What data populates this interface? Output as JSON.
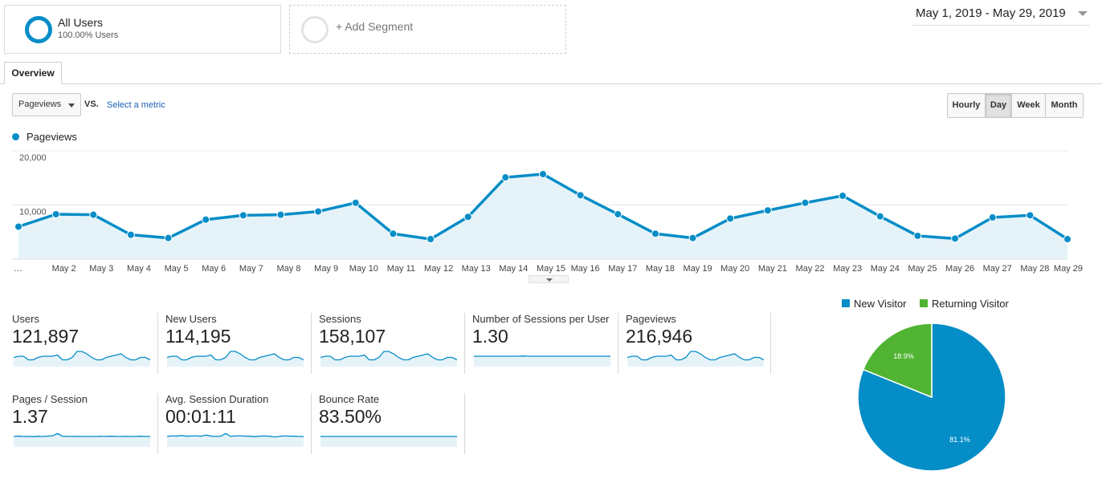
{
  "segments": {
    "all_users": {
      "name": "All Users",
      "percent": "100.00% Users"
    },
    "add_segment_label": "+ Add Segment"
  },
  "date_range": "May 1, 2019 - May 29, 2019",
  "tabs": [
    {
      "label": "Overview",
      "active": true
    }
  ],
  "metric_selector": {
    "selected": "Pageviews",
    "vs_label": "VS.",
    "select_metric_link": "Select a metric"
  },
  "period_buttons": [
    {
      "label": "Hourly",
      "active": false
    },
    {
      "label": "Day",
      "active": true
    },
    {
      "label": "Week",
      "active": false
    },
    {
      "label": "Month",
      "active": false
    }
  ],
  "colors": {
    "primary": "#058dc7",
    "secondary": "#50b432",
    "area_fill": "#e5f3f9"
  },
  "chart_data": [
    {
      "type": "area",
      "series": [
        {
          "name": "Pageviews",
          "values": [
            6000,
            8300,
            8200,
            4500,
            3900,
            7300,
            8100,
            8200,
            8800,
            10400,
            4700,
            3700,
            7800,
            15100,
            15700,
            11800,
            8300,
            4700,
            3900,
            7500,
            9000,
            10400,
            11700,
            7900,
            4300,
            3800,
            7700,
            8100,
            3700
          ]
        }
      ],
      "x": [
        "…",
        "May 2",
        "May 3",
        "May 4",
        "May 5",
        "May 6",
        "May 7",
        "May 8",
        "May 9",
        "May 10",
        "May 11",
        "May 12",
        "May 13",
        "May 14",
        "May 15",
        "May 16",
        "May 17",
        "May 18",
        "May 19",
        "May 20",
        "May 21",
        "May 22",
        "May 23",
        "May 24",
        "May 25",
        "May 26",
        "May 27",
        "May 28",
        "May 29"
      ],
      "y_ticks": [
        "20,000",
        "10,000"
      ],
      "ylim": [
        0,
        20000
      ],
      "grid": true,
      "legend": "top-left"
    },
    {
      "type": "pie",
      "categories": [
        "New Visitor",
        "Returning Visitor"
      ],
      "values": [
        81.1,
        18.9
      ],
      "data_labels": [
        "81.1%",
        "18.9%"
      ],
      "colors": [
        "#058dc7",
        "#50b432"
      ],
      "legend": "top"
    }
  ],
  "scorecards": [
    {
      "label": "Users",
      "value": "121,897",
      "spark": [
        5,
        6,
        6,
        3,
        3,
        5,
        6,
        6,
        6,
        7,
        3,
        3,
        5,
        10,
        10,
        8,
        5,
        3,
        3,
        5,
        6,
        7,
        8,
        5,
        3,
        3,
        5,
        5,
        3
      ]
    },
    {
      "label": "New Users",
      "value": "114,195",
      "spark": [
        5,
        6,
        6,
        3,
        3,
        5,
        6,
        6,
        6,
        7,
        3,
        3,
        5,
        10,
        10,
        8,
        5,
        3,
        3,
        5,
        6,
        7,
        8,
        5,
        3,
        3,
        5,
        5,
        3
      ]
    },
    {
      "label": "Sessions",
      "value": "158,107",
      "spark": [
        5,
        6,
        6,
        3,
        3,
        5,
        6,
        6,
        6,
        7,
        3,
        3,
        5,
        10,
        10,
        8,
        5,
        3,
        3,
        5,
        6,
        7,
        8,
        5,
        3,
        3,
        5,
        5,
        3
      ]
    },
    {
      "label": "Number of Sessions per User",
      "value": "1.30",
      "spark": [
        6,
        6,
        6,
        6,
        6,
        6,
        6,
        6,
        6,
        6,
        6.2,
        6,
        6,
        6,
        6,
        6,
        6,
        6,
        6,
        6,
        6,
        6,
        6,
        6,
        6,
        6,
        6,
        6,
        6
      ]
    },
    {
      "label": "Pageviews",
      "value": "216,946",
      "spark": [
        5,
        6,
        6,
        3,
        3,
        5,
        6,
        6,
        6,
        7,
        3,
        3,
        5,
        10,
        10,
        8,
        5,
        3,
        3,
        5,
        6,
        7,
        8,
        5,
        3,
        3,
        5,
        5,
        3
      ]
    },
    {
      "label": "Pages / Session",
      "value": "1.37",
      "spark": [
        6,
        6.3,
        6,
        6.1,
        5.8,
        6.2,
        6,
        6.3,
        6.6,
        8.5,
        6.2,
        6.1,
        6,
        6.1,
        6,
        6,
        6,
        6,
        6.2,
        6.1,
        6.2,
        6.1,
        6,
        6.1,
        6,
        6,
        6.2,
        6,
        6
      ]
    },
    {
      "label": "Avg. Session Duration",
      "value": "00:01:11",
      "spark": [
        6,
        6.5,
        6.3,
        6.8,
        6.2,
        6.4,
        6.5,
        6.2,
        7.2,
        6.3,
        6,
        6.2,
        8.5,
        6.1,
        6.4,
        6.5,
        6.3,
        6.2,
        5.8,
        6.3,
        6.4,
        6.2,
        5.6,
        6.1,
        6.4,
        6.3,
        6.2,
        6,
        6
      ]
    },
    {
      "label": "Bounce Rate",
      "value": "83.50%",
      "spark": [
        6,
        6,
        6,
        6,
        6,
        6,
        6,
        6,
        6,
        6,
        6,
        6,
        6,
        6,
        6,
        6,
        6,
        6,
        6,
        6,
        6,
        6,
        6,
        6,
        6,
        6,
        6,
        6,
        6
      ]
    }
  ]
}
